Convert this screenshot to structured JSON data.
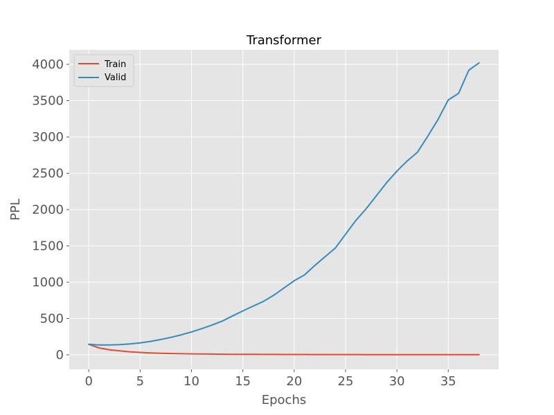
{
  "chart_data": {
    "type": "line",
    "title": "Transformer",
    "xlabel": "Epochs",
    "ylabel": "PPL",
    "xlim": [
      -1.9,
      39.9
    ],
    "ylim": [
      -200,
      4200
    ],
    "xticks": [
      0,
      5,
      10,
      15,
      20,
      25,
      30,
      35
    ],
    "yticks": [
      0,
      500,
      1000,
      1500,
      2000,
      2500,
      3000,
      3500,
      4000
    ],
    "grid": true,
    "legend_position": "top-left",
    "x": [
      0,
      1,
      2,
      3,
      4,
      5,
      6,
      7,
      8,
      9,
      10,
      11,
      12,
      13,
      14,
      15,
      16,
      17,
      18,
      19,
      20,
      21,
      22,
      23,
      24,
      25,
      26,
      27,
      28,
      29,
      30,
      31,
      32,
      33,
      34,
      35,
      36,
      37,
      38
    ],
    "series": [
      {
        "name": "Train",
        "color": "#E24A33",
        "values": [
          145,
          95,
          70,
          55,
          42,
          33,
          27,
          22,
          18,
          15,
          13,
          11,
          10,
          9,
          8,
          7,
          6.5,
          6,
          5.5,
          5,
          4.8,
          4.5,
          4.2,
          4,
          3.8,
          3.6,
          3.4,
          3.2,
          3,
          2.9,
          2.8,
          2.7,
          2.6,
          2.5,
          2.4,
          2.3,
          2.2,
          2.1,
          2
        ]
      },
      {
        "name": "Valid",
        "color": "#348ABD",
        "values": [
          145,
          135,
          135,
          140,
          150,
          165,
          185,
          210,
          240,
          275,
          315,
          360,
          410,
          465,
          535,
          605,
          670,
          735,
          820,
          920,
          1020,
          1100,
          1230,
          1350,
          1470,
          1660,
          1850,
          2010,
          2190,
          2370,
          2530,
          2670,
          2790,
          3010,
          3240,
          3510,
          3600,
          3920,
          4020
        ]
      }
    ]
  }
}
